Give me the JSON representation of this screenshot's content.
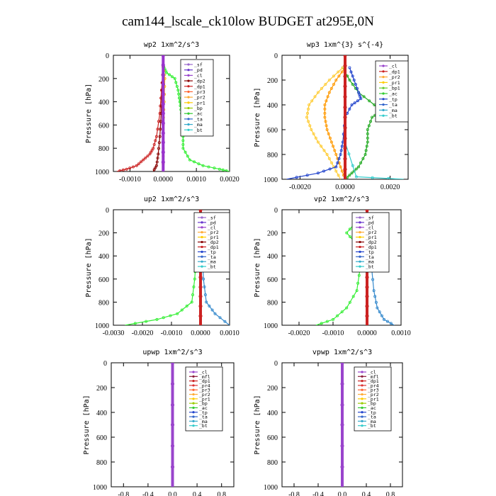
{
  "page": {
    "title": "cam144_lscale_ck10low  BUDGET at295E,0N"
  },
  "common": {
    "ylabel": "Pressure [hPa]",
    "yticks": [
      0,
      200,
      400,
      600,
      800,
      1000
    ],
    "ylim": [
      1000,
      0
    ]
  },
  "chart_data": [
    {
      "type": "line",
      "title": "wp2  1xm^2/s^3",
      "xlim": [
        -0.0015,
        0.002
      ],
      "xticks": [
        -0.001,
        0,
        0.001,
        0.002
      ],
      "xtick_labels": [
        "-0.0010",
        "0.0000",
        "0.0010",
        "0.0020"
      ],
      "legend": [
        "_sf",
        "_pd",
        "_cl",
        "_dp2",
        "_dp1",
        "_pr3",
        "_pr2",
        "_pr1",
        "_bp",
        "_ac",
        "_ta",
        "_ma",
        "_bt"
      ],
      "series": [
        {
          "name": "_ac",
          "color": "#33ee33",
          "points": [
            [
              2e-05,
              100
            ],
            [
              0.0001,
              150
            ],
            [
              0.00035,
              200
            ],
            [
              0.00045,
              300
            ],
            [
              0.0005,
              400
            ],
            [
              0.00055,
              500
            ],
            [
              0.0006,
              600
            ],
            [
              0.0006,
              700
            ],
            [
              0.0006,
              800
            ],
            [
              0.0008,
              900
            ],
            [
              0.0012,
              950
            ],
            [
              0.0017,
              980
            ],
            [
              0.002,
              1000
            ]
          ]
        },
        {
          "name": "_dp1",
          "color": "#cc2222",
          "points": [
            [
              0,
              100
            ],
            [
              -5e-05,
              300
            ],
            [
              -0.0001,
              500
            ],
            [
              -0.0002,
              700
            ],
            [
              -0.0003,
              800
            ],
            [
              -0.0004,
              850
            ],
            [
              -0.0006,
              900
            ],
            [
              -0.0008,
              950
            ],
            [
              -0.0011,
              980
            ],
            [
              -0.0014,
              1000
            ]
          ]
        },
        {
          "name": "_dp2",
          "color": "#880000",
          "points": [
            [
              0,
              100
            ],
            [
              -3e-05,
              300
            ],
            [
              -6e-05,
              500
            ],
            [
              -0.0001,
              700
            ],
            [
              -0.00015,
              850
            ],
            [
              -0.0002,
              950
            ],
            [
              -0.0003,
              1000
            ]
          ]
        },
        {
          "name": "_pr1",
          "color": "#ffbb00",
          "points": [
            [
              0,
              100
            ],
            [
              5e-05,
              200
            ],
            [
              3e-05,
              400
            ],
            [
              0,
              600
            ],
            [
              0,
              800
            ],
            [
              0,
              1000
            ]
          ]
        },
        {
          "name": "_cl",
          "color": "#9933cc",
          "points": [
            [
              0,
              0
            ],
            [
              0,
              250
            ],
            [
              0,
              500
            ],
            [
              0,
              750
            ],
            [
              0,
              1000
            ]
          ]
        }
      ]
    },
    {
      "type": "line",
      "title": "wp3  1xm^{3} s^{-4}",
      "xlim": [
        -0.0028,
        0.0028
      ],
      "xticks": [
        -0.002,
        0,
        0.002
      ],
      "xtick_labels": [
        "-0.0020",
        "0.0000",
        "0.0020"
      ],
      "legend": [
        "_cl",
        "_dp1",
        "_pr2",
        "_pr1",
        "_bp1",
        "_ac",
        "_tp",
        "_ta",
        "_ma",
        "_bt"
      ],
      "series": [
        {
          "name": "_ac",
          "color": "#22aa22",
          "points": [
            [
              -0.0001,
              100
            ],
            [
              0.0002,
              200
            ],
            [
              0.0006,
              300
            ],
            [
              0.0013,
              400
            ],
            [
              0.0016,
              450
            ],
            [
              0.0012,
              500
            ],
            [
              0.001,
              600
            ],
            [
              0.001,
              700
            ],
            [
              0.0009,
              800
            ],
            [
              0.0006,
              900
            ],
            [
              0.0003,
              950
            ],
            [
              0,
              1000
            ]
          ]
        },
        {
          "name": "_pr2",
          "color": "#ffcc33",
          "points": [
            [
              -0.0001,
              100
            ],
            [
              -0.0007,
              200
            ],
            [
              -0.0012,
              300
            ],
            [
              -0.0016,
              400
            ],
            [
              -0.0017,
              500
            ],
            [
              -0.0015,
              600
            ],
            [
              -0.0012,
              700
            ],
            [
              -0.0008,
              800
            ],
            [
              -0.0005,
              900
            ],
            [
              -0.0002,
              1000
            ]
          ]
        },
        {
          "name": "_pr1",
          "color": "#ff9900",
          "points": [
            [
              0,
              100
            ],
            [
              -0.0004,
              200
            ],
            [
              -0.0007,
              300
            ],
            [
              -0.0009,
              400
            ],
            [
              -0.0009,
              500
            ],
            [
              -0.0008,
              600
            ],
            [
              -0.0006,
              700
            ],
            [
              -0.0004,
              800
            ],
            [
              -0.0002,
              900
            ],
            [
              0,
              1000
            ]
          ]
        },
        {
          "name": "_tp",
          "color": "#2244cc",
          "points": [
            [
              0.0002,
              100
            ],
            [
              0.0004,
              200
            ],
            [
              0.0006,
              300
            ],
            [
              0.0007,
              350
            ],
            [
              0.0003,
              400
            ],
            [
              0,
              500
            ],
            [
              -0.0001,
              700
            ],
            [
              -0.0002,
              800
            ],
            [
              -0.0004,
              900
            ],
            [
              -0.0012,
              950
            ],
            [
              -0.0026,
              1000
            ]
          ]
        },
        {
          "name": "_bt",
          "color": "#33cccc",
          "points": [
            [
              0,
              100
            ],
            [
              0,
              400
            ],
            [
              0,
              700
            ],
            [
              0.0005,
              980
            ],
            [
              0.0026,
              1000
            ]
          ]
        },
        {
          "name": "_dp1",
          "color": "#cc2222",
          "points": [
            [
              0,
              0
            ],
            [
              0,
              250
            ],
            [
              0,
              500
            ],
            [
              0,
              750
            ],
            [
              0,
              1000
            ]
          ]
        }
      ]
    },
    {
      "type": "line",
      "title": "up2  1xm^2/s^3",
      "xlim": [
        -0.003,
        0.001
      ],
      "xticks": [
        -0.003,
        -0.002,
        -0.001,
        0,
        0.001
      ],
      "xtick_labels": [
        "-0.0030",
        "-0.0020",
        "-0.0010",
        "0.0000",
        "0.0010"
      ],
      "legend": [
        "_sf",
        "_pd",
        "_cl",
        "_pr2",
        "_pr1",
        "_dp2",
        "_dp1",
        "_tp",
        "_ta",
        "_ma",
        "_bt"
      ],
      "series": [
        {
          "name": "_pr1",
          "color": "#33ee33",
          "points": [
            [
              0,
              100
            ],
            [
              -0.0001,
              200
            ],
            [
              -0.00015,
              400
            ],
            [
              -0.0002,
              600
            ],
            [
              -0.0003,
              800
            ],
            [
              -0.0008,
              900
            ],
            [
              -0.0015,
              950
            ],
            [
              -0.0026,
              1000
            ]
          ]
        },
        {
          "name": "_ta",
          "color": "#3388cc",
          "points": [
            [
              0,
              100
            ],
            [
              5e-05,
              300
            ],
            [
              0.0001,
              600
            ],
            [
              0.0002,
              800
            ],
            [
              0.0005,
              900
            ],
            [
              0.001,
              1000
            ]
          ]
        },
        {
          "name": "_cl",
          "color": "#cc2222",
          "points": [
            [
              0,
              0
            ],
            [
              0,
              250
            ],
            [
              0,
              500
            ],
            [
              0,
              750
            ],
            [
              0,
              1000
            ]
          ]
        }
      ]
    },
    {
      "type": "line",
      "title": "vp2  1xm^2/s^3",
      "xlim": [
        -0.0025,
        0.001
      ],
      "xticks": [
        -0.002,
        -0.001,
        0,
        0.001
      ],
      "xtick_labels": [
        "-0.0020",
        "-0.0010",
        "0.0000",
        "0.0010"
      ],
      "legend": [
        "_sf",
        "_pd",
        "_cl",
        "_pr2",
        "_pr1",
        "_dp2",
        "_dp1",
        "_tp",
        "_ta",
        "_ma",
        "_bt"
      ],
      "series": [
        {
          "name": "_pr1",
          "color": "#33ee33",
          "points": [
            [
              -0.0003,
              100
            ],
            [
              -0.0006,
              200
            ],
            [
              -0.0003,
              300
            ],
            [
              -0.0002,
              500
            ],
            [
              -0.0003,
              700
            ],
            [
              -0.0006,
              850
            ],
            [
              -0.001,
              950
            ],
            [
              -0.0015,
              1000
            ]
          ]
        },
        {
          "name": "_ta",
          "color": "#3388cc",
          "points": [
            [
              0,
              100
            ],
            [
              0.0001,
              400
            ],
            [
              0.0002,
              700
            ],
            [
              0.0003,
              850
            ],
            [
              0.0005,
              950
            ],
            [
              0.0008,
              1000
            ]
          ]
        },
        {
          "name": "_cl",
          "color": "#cc2222",
          "points": [
            [
              0,
              0
            ],
            [
              0,
              250
            ],
            [
              0,
              500
            ],
            [
              0,
              750
            ],
            [
              0,
              1000
            ]
          ]
        }
      ]
    },
    {
      "type": "line",
      "title": "upwp  1xm^2/s^3",
      "xlim": [
        -1,
        1
      ],
      "xticks": [
        -0.8,
        -0.4,
        0,
        0.4,
        0.8
      ],
      "xtick_labels": [
        "-0.8",
        "-0.4",
        "0.0",
        "0.4",
        "0.8"
      ],
      "legend": [
        "_cl",
        "_mfl",
        "_dp1",
        "_pr4",
        "_pr3",
        "_pr2",
        "_pr1",
        "_bp",
        "_ac",
        "_tp",
        "_ta",
        "_ma",
        "_bt"
      ],
      "series": [
        {
          "name": "_mfl",
          "color": "#8a1a3a",
          "points": [
            [
              0,
              0
            ],
            [
              0,
              250
            ],
            [
              0,
              500
            ],
            [
              0,
              750
            ],
            [
              0,
              1000
            ]
          ]
        },
        {
          "name": "_cl",
          "color": "#9944cc",
          "points": [
            [
              0,
              0
            ],
            [
              0,
              500
            ],
            [
              0,
              1000
            ]
          ]
        }
      ]
    },
    {
      "type": "line",
      "title": "vpwp  1xm^2/s^3",
      "xlim": [
        -1,
        1
      ],
      "xticks": [
        -0.8,
        -0.4,
        0,
        0.4,
        0.8
      ],
      "xtick_labels": [
        "-0.8",
        "-0.4",
        "0.0",
        "0.4",
        "0.8"
      ],
      "legend": [
        "_cl",
        "_mfl",
        "_dp1",
        "_pr4",
        "_pr3",
        "_pr2",
        "_pr1",
        "_bp",
        "_ac",
        "_tp",
        "_ta",
        "_ma",
        "_bt"
      ],
      "series": [
        {
          "name": "_mfl",
          "color": "#8a1a3a",
          "points": [
            [
              0,
              0
            ],
            [
              0,
              250
            ],
            [
              0,
              500
            ],
            [
              0,
              750
            ],
            [
              0,
              1000
            ]
          ]
        },
        {
          "name": "_cl",
          "color": "#9944cc",
          "points": [
            [
              0,
              0
            ],
            [
              0,
              500
            ],
            [
              0,
              1000
            ]
          ]
        }
      ]
    }
  ],
  "legend_colors": {
    "_sf": "#9966cc",
    "_pd": "#6633cc",
    "_cl": "#9944cc",
    "_mfl": "#8a1a3a",
    "_dp2": "#880000",
    "_dp1": "#cc2222",
    "_pr4": "#dd3333",
    "_pr3": "#ff6633",
    "_pr2": "#ffaa33",
    "_pr1": "#ffcc00",
    "_bp": "#99cc00",
    "_bp1": "#66cc33",
    "_ac": "#33cc33",
    "_tp": "#2244cc",
    "_ta": "#3366cc",
    "_ma": "#33aacc",
    "_bt": "#33cccc"
  }
}
